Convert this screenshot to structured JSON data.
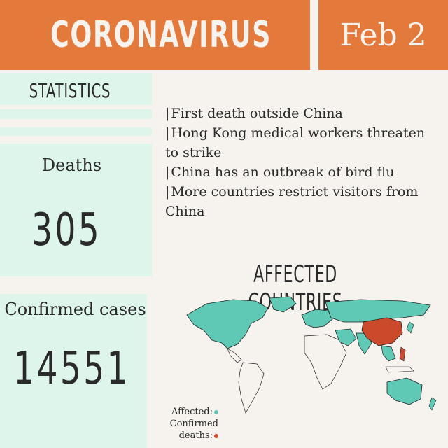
{
  "header": {
    "title": "CORONAVIRUS",
    "date": "Feb 2"
  },
  "stats": {
    "section_title": "STATISTICS",
    "deaths_label": "Deaths",
    "deaths_value": "305",
    "cases_label": "Confirmed cases",
    "cases_value": "14551"
  },
  "news": [
    {
      "bar": "|",
      "text": "First death outside China"
    },
    {
      "bar": "|",
      "text": "Hong Kong medical workers threaten to strike"
    },
    {
      "bar": "|",
      "text": "China has an outbreak of bird flu"
    },
    {
      "bar": "|",
      "text": "More countries restrict visitors from China"
    }
  ],
  "map": {
    "title": "AFFECTED COUNTRIES",
    "legend_affected": "Affected:",
    "legend_deaths_line1": "Confirmed",
    "legend_deaths_line2": "deaths:"
  },
  "colors": {
    "orange": "#e4793c",
    "mint": "#def5ec",
    "affected": "#5fc9b5",
    "deaths": "#cc4a2c"
  }
}
